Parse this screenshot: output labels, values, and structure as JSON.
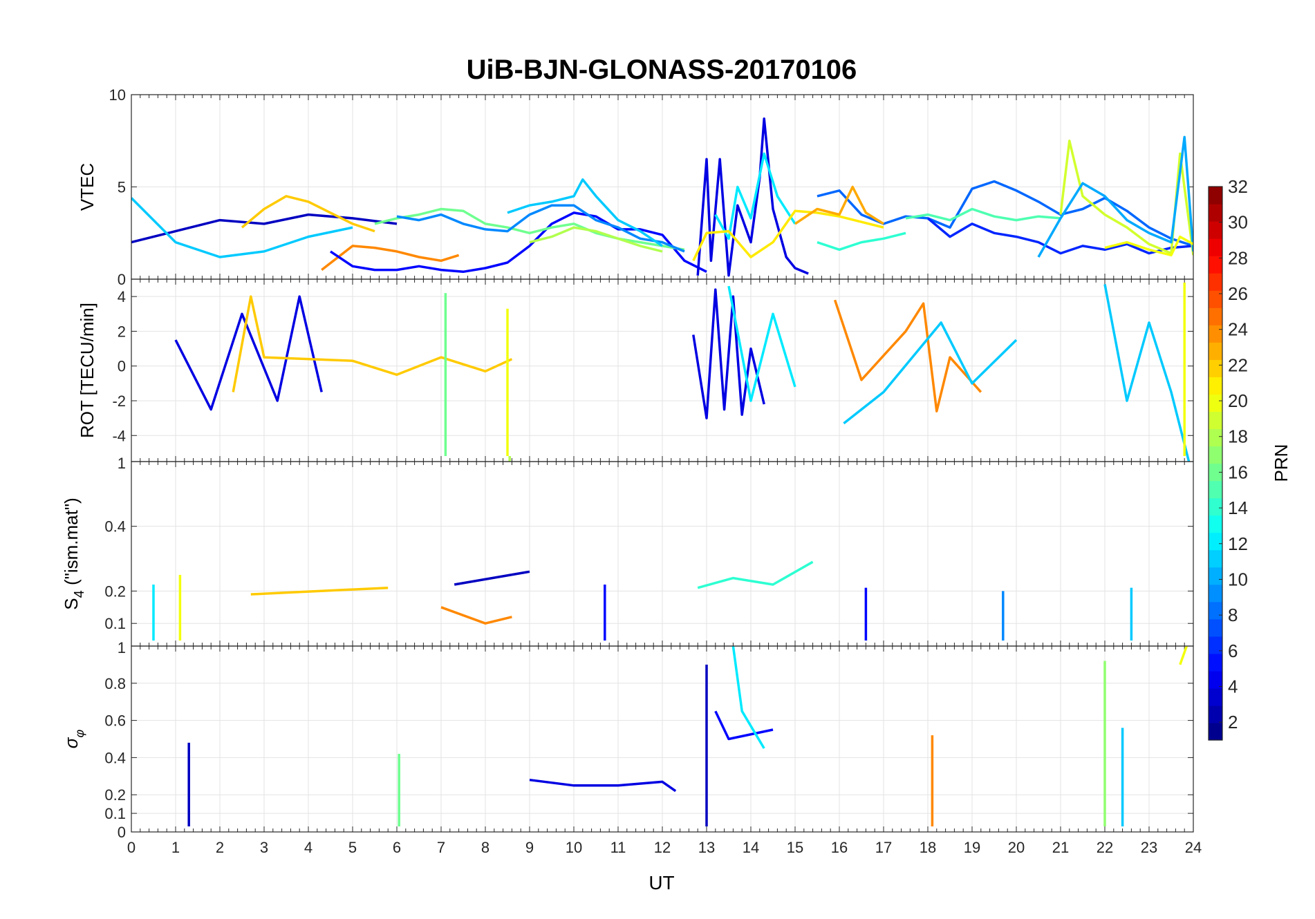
{
  "chart_data": {
    "title": "UiB-BJN-GLONASS-20170106",
    "xlabel": "UT",
    "xlim": [
      0,
      24
    ],
    "xticks": [
      "0",
      "1",
      "2",
      "3",
      "4",
      "5",
      "6",
      "7",
      "8",
      "9",
      "10",
      "11",
      "12",
      "13",
      "14",
      "15",
      "16",
      "17",
      "18",
      "19",
      "20",
      "21",
      "22",
      "23",
      "24"
    ],
    "colorbar": {
      "label": "PRN",
      "range": [
        1,
        32
      ],
      "ticks": [
        "2",
        "4",
        "6",
        "8",
        "10",
        "12",
        "14",
        "16",
        "18",
        "20",
        "22",
        "24",
        "26",
        "28",
        "30",
        "32"
      ],
      "colormap": "jet"
    },
    "panels": [
      {
        "id": "vtec",
        "type": "line",
        "ylabel": "VTEC",
        "ylim": [
          0,
          10
        ],
        "yticks": [
          {
            "v": 0,
            "t": "0"
          },
          {
            "v": 5,
            "t": "5"
          },
          {
            "v": 10,
            "t": "10"
          }
        ],
        "grid": true,
        "series": [
          {
            "prn": 3,
            "x": [
              0,
              1,
              2,
              3,
              4,
              5,
              6
            ],
            "y": [
              2,
              2.6,
              3.2,
              3.0,
              3.5,
              3.3,
              3.0
            ]
          },
          {
            "prn": 11,
            "x": [
              0,
              1,
              2,
              3,
              4,
              5
            ],
            "y": [
              4.4,
              2.0,
              1.2,
              1.5,
              2.3,
              2.8
            ]
          },
          {
            "prn": 22,
            "x": [
              2.5,
              3,
              3.5,
              4,
              4.5,
              5,
              5.5
            ],
            "y": [
              2.8,
              3.8,
              4.5,
              4.2,
              3.6,
              3.0,
              2.6
            ]
          },
          {
            "prn": 24,
            "x": [
              4.3,
              5,
              5.5,
              6,
              6.5,
              7,
              7.4
            ],
            "y": [
              0.5,
              1.8,
              1.7,
              1.5,
              1.2,
              1.0,
              1.3
            ]
          },
          {
            "prn": 5,
            "x": [
              4.5,
              5,
              5.5,
              6,
              6.5,
              7,
              7.5,
              8,
              8.5,
              9,
              9.5,
              10,
              10.5,
              11,
              11.5,
              12,
              12.5,
              13
            ],
            "y": [
              1.5,
              0.7,
              0.5,
              0.5,
              0.7,
              0.5,
              0.4,
              0.6,
              0.9,
              1.8,
              3.0,
              3.6,
              3.4,
              2.7,
              2.7,
              2.4,
              1.0,
              0.4
            ]
          },
          {
            "prn": 16,
            "x": [
              5.5,
              6,
              6.5,
              7,
              7.5,
              8,
              8.5,
              9,
              9.5,
              10,
              10.5,
              11,
              11.5,
              12,
              12.5
            ],
            "y": [
              3.0,
              3.3,
              3.5,
              3.8,
              3.7,
              3.0,
              2.8,
              2.5,
              2.8,
              3.0,
              2.5,
              2.2,
              2.0,
              1.8,
              1.6
            ]
          },
          {
            "prn": 9,
            "x": [
              6,
              6.5,
              7,
              7.5,
              8,
              8.5,
              9,
              9.5,
              10,
              10.5,
              11,
              11.5,
              12,
              12.5
            ],
            "y": [
              3.4,
              3.2,
              3.5,
              3.0,
              2.7,
              2.6,
              3.5,
              4.0,
              4.0,
              3.2,
              2.8,
              2.2,
              2.0,
              1.5
            ]
          },
          {
            "prn": 11,
            "x": [
              8.5,
              9,
              9.5,
              10,
              10.2,
              10.5,
              11,
              11.5,
              12
            ],
            "y": [
              3.6,
              4.0,
              4.2,
              4.5,
              5.4,
              4.5,
              3.2,
              2.6,
              1.8
            ]
          },
          {
            "prn": 18,
            "x": [
              9,
              9.5,
              10,
              10.5,
              11,
              11.5,
              12
            ],
            "y": [
              2.0,
              2.3,
              2.8,
              2.6,
              2.2,
              1.8,
              1.5
            ]
          },
          {
            "prn": 4,
            "x": [
              12.8,
              13,
              13.1,
              13.3,
              13.5,
              13.7,
              14,
              14.2,
              14.3,
              14.5,
              14.8,
              15,
              15.3
            ],
            "y": [
              0.2,
              6.5,
              1.0,
              6.5,
              0.2,
              4.0,
              2.0,
              5.5,
              8.7,
              3.8,
              1.2,
              0.6,
              0.3
            ]
          },
          {
            "prn": 12,
            "x": [
              13.2,
              13.5,
              13.7,
              14,
              14.3,
              14.6,
              15
            ],
            "y": [
              3.5,
              2.2,
              5.0,
              3.3,
              6.8,
              4.5,
              3.0
            ]
          },
          {
            "prn": 21,
            "x": [
              12.7,
              13,
              13.5,
              14,
              14.5,
              15,
              15.5,
              16,
              16.5,
              17
            ],
            "y": [
              1.0,
              2.5,
              2.6,
              1.2,
              2.0,
              3.7,
              3.6,
              3.4,
              3.1,
              2.8
            ]
          },
          {
            "prn": 8,
            "x": [
              15.5,
              16,
              16.5,
              17,
              17.5,
              18,
              18.5,
              19,
              19.5,
              20,
              20.5,
              21,
              21.5,
              22,
              22.5,
              23,
              23.5,
              24
            ],
            "y": [
              4.5,
              4.8,
              3.5,
              3.0,
              3.4,
              3.3,
              2.8,
              4.9,
              5.3,
              4.8,
              4.2,
              3.5,
              3.8,
              4.4,
              3.7,
              2.8,
              2.2,
              1.8
            ]
          },
          {
            "prn": 15,
            "x": [
              17.5,
              18,
              18.5,
              19,
              19.5,
              20,
              20.5,
              21
            ],
            "y": [
              3.3,
              3.5,
              3.2,
              3.8,
              3.4,
              3.2,
              3.4,
              3.3
            ]
          },
          {
            "prn": 14,
            "x": [
              15.5,
              16,
              16.5,
              17,
              17.5
            ],
            "y": [
              2.0,
              1.6,
              2.0,
              2.2,
              2.5
            ]
          },
          {
            "prn": 6,
            "x": [
              18,
              18.5,
              19,
              19.5,
              20,
              20.5,
              21,
              21.5,
              22,
              22.5,
              23,
              23.5,
              24
            ],
            "y": [
              3.3,
              2.3,
              3.0,
              2.5,
              2.3,
              2.0,
              1.4,
              1.8,
              1.6,
              1.9,
              1.4,
              1.7,
              1.8
            ]
          },
          {
            "prn": 19,
            "x": [
              21,
              21.2,
              21.5,
              22,
              22.5,
              23,
              23.5,
              23.7,
              24
            ],
            "y": [
              3.5,
              7.5,
              4.5,
              3.5,
              2.8,
              1.9,
              1.4,
              6.8,
              1.3
            ]
          },
          {
            "prn": 10,
            "x": [
              20.5,
              21,
              21.5,
              22,
              22.5,
              23,
              23.5,
              23.8,
              24
            ],
            "y": [
              1.2,
              3.3,
              5.2,
              4.5,
              3.2,
              2.5,
              2.0,
              7.7,
              1.5
            ]
          },
          {
            "prn": 23,
            "x": [
              15,
              15.5,
              16,
              16.3,
              16.6,
              17
            ],
            "y": [
              3.0,
              3.8,
              3.5,
              5.0,
              3.6,
              3.0
            ]
          },
          {
            "prn": 20,
            "x": [
              22,
              22.5,
              23,
              23.5,
              23.7,
              24
            ],
            "y": [
              1.7,
              2.0,
              1.6,
              1.3,
              2.3,
              1.9
            ]
          }
        ]
      },
      {
        "id": "rot",
        "type": "line",
        "ylabel": "ROT [TECU/min]",
        "ylim": [
          -5.5,
          5
        ],
        "yticks": [
          {
            "v": -4,
            "t": "-4"
          },
          {
            "v": -2,
            "t": "-2"
          },
          {
            "v": 0,
            "t": "0"
          },
          {
            "v": 2,
            "t": "2"
          },
          {
            "v": 4,
            "t": "4"
          }
        ],
        "grid": true,
        "series": [
          {
            "prn": 4,
            "x": [
              1,
              1.8,
              2.5,
              3.3,
              3.8,
              4.3
            ],
            "y": [
              1.5,
              -2.5,
              3.0,
              -2.0,
              4.0,
              -1.5
            ]
          },
          {
            "prn": 22,
            "x": [
              2.3,
              2.7,
              3,
              5,
              6,
              7,
              8,
              8.6
            ],
            "y": [
              -1.5,
              4.0,
              0.5,
              0.3,
              -0.5,
              0.5,
              -0.3,
              0.4
            ]
          },
          {
            "prn": 16,
            "x": [
              7.1
            ],
            "y": [
              4.2
            ]
          },
          {
            "prn": 18,
            "x": [
              8.55
            ],
            "y": [
              -5.5
            ]
          },
          {
            "prn": 20,
            "x": [
              8.5
            ],
            "y": [
              3.3
            ]
          },
          {
            "prn": 4,
            "x": [
              12.7,
              13,
              13.2,
              13.4,
              13.6,
              13.8,
              14,
              14.3
            ],
            "y": [
              1.8,
              -3.0,
              4.4,
              -2.5,
              4.0,
              -2.8,
              1.0,
              -2.2
            ]
          },
          {
            "prn": 12,
            "x": [
              13.5,
              14,
              14.5,
              15
            ],
            "y": [
              4.6,
              -2.0,
              3.0,
              -1.2
            ]
          },
          {
            "prn": 24,
            "x": [
              15.9,
              16.5,
              17,
              17.5,
              17.9,
              18.2,
              18.5,
              19.2
            ],
            "y": [
              3.8,
              -0.8,
              0.6,
              2.0,
              3.6,
              -2.6,
              0.5,
              -1.5
            ]
          },
          {
            "prn": 11,
            "x": [
              16.1,
              17,
              18.3,
              19,
              20
            ],
            "y": [
              -3.3,
              -1.5,
              2.5,
              -1.0,
              1.5
            ]
          },
          {
            "prn": 11,
            "x": [
              22,
              22.5,
              23,
              23.5,
              23.9
            ],
            "y": [
              4.7,
              -2.0,
              2.5,
              -1.5,
              -5.5
            ]
          },
          {
            "prn": 20,
            "x": [
              23.8
            ],
            "y": [
              4.8
            ]
          }
        ]
      },
      {
        "id": "s4",
        "type": "line",
        "ylabel": "S4 (\"ism.mat\")",
        "ylim": [
          0.03,
          0.6
        ],
        "yticks": [
          {
            "v": 0.1,
            "t": "0.1"
          },
          {
            "v": 0.2,
            "t": "0.2"
          },
          {
            "v": 0.4,
            "t": "0.4"
          }
        ],
        "extra_tick_label": "1",
        "grid": true,
        "series": [
          {
            "prn": 20,
            "x": [
              1.1
            ],
            "y": [
              0.25
            ]
          },
          {
            "prn": 12,
            "x": [
              0.5
            ],
            "y": [
              0.22
            ]
          },
          {
            "prn": 22,
            "x": [
              2.7,
              5.8
            ],
            "y": [
              0.19,
              0.21
            ]
          },
          {
            "prn": 3,
            "x": [
              7.3,
              9
            ],
            "y": [
              0.22,
              0.26
            ]
          },
          {
            "prn": 5,
            "x": [
              10.7
            ],
            "y": [
              0.22
            ]
          },
          {
            "prn": 14,
            "x": [
              12.8,
              13.6,
              14.5,
              15.4
            ],
            "y": [
              0.21,
              0.24,
              0.22,
              0.29
            ]
          },
          {
            "prn": 5,
            "x": [
              16.6
            ],
            "y": [
              0.21
            ]
          },
          {
            "prn": 9,
            "x": [
              19.7
            ],
            "y": [
              0.2
            ]
          },
          {
            "prn": 11,
            "x": [
              22.6
            ],
            "y": [
              0.21
            ]
          },
          {
            "prn": 24,
            "x": [
              7,
              8,
              8.6
            ],
            "y": [
              0.15,
              0.1,
              0.12
            ]
          }
        ]
      },
      {
        "id": "sigma_phi",
        "type": "line",
        "ylabel": "σφ",
        "ylim": [
          0,
          1
        ],
        "yticks": [
          {
            "v": 0,
            "t": "0"
          },
          {
            "v": 0.1,
            "t": "0.1"
          },
          {
            "v": 0.2,
            "t": "0.2"
          },
          {
            "v": 0.4,
            "t": "0.4"
          },
          {
            "v": 0.6,
            "t": "0.6"
          },
          {
            "v": 0.8,
            "t": "0.8"
          }
        ],
        "extra_tick_label": "1",
        "grid": true,
        "series": [
          {
            "prn": 3,
            "x": [
              1.3
            ],
            "y": [
              0.48
            ]
          },
          {
            "prn": 16,
            "x": [
              6.05
            ],
            "y": [
              0.42
            ]
          },
          {
            "prn": 4,
            "x": [
              9,
              10,
              11,
              12,
              12.3
            ],
            "y": [
              0.28,
              0.25,
              0.25,
              0.27,
              0.22
            ]
          },
          {
            "prn": 3,
            "x": [
              13
            ],
            "y": [
              0.9
            ]
          },
          {
            "prn": 5,
            "x": [
              13.2,
              13.5,
              14.5
            ],
            "y": [
              0.65,
              0.5,
              0.55
            ]
          },
          {
            "prn": 12,
            "x": [
              13.6,
              13.8,
              14.3
            ],
            "y": [
              1.0,
              0.65,
              0.45
            ]
          },
          {
            "prn": 24,
            "x": [
              18.1
            ],
            "y": [
              0.52
            ]
          },
          {
            "prn": 17,
            "x": [
              22
            ],
            "y": [
              0.92
            ]
          },
          {
            "prn": 11,
            "x": [
              22.4
            ],
            "y": [
              0.56
            ]
          },
          {
            "prn": 20,
            "x": [
              23.7,
              23.85
            ],
            "y": [
              0.9,
              1.0
            ]
          }
        ]
      }
    ]
  }
}
